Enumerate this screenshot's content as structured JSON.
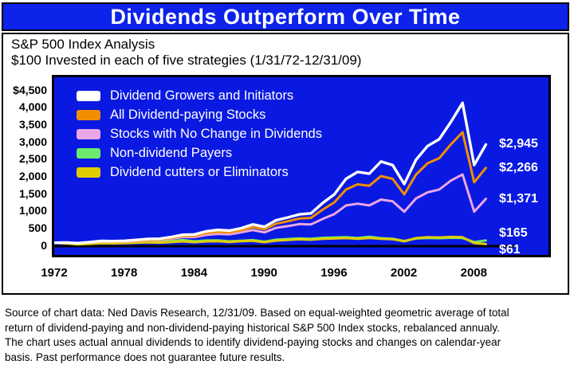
{
  "header": {
    "title": "Dividends Outperform Over Time"
  },
  "subtitle": {
    "line1": "S&P 500 Index Analysis",
    "line2": "$100 Invested in each of five strategies (1/31/72-12/31/09)"
  },
  "chart_data": {
    "type": "line",
    "title": "Dividends Outperform Over Time",
    "subtitle": "$100 Invested in each of five strategies (1/31/72-12/31/09)",
    "xlabel": "",
    "ylabel": "",
    "ylim": [
      0,
      4500
    ],
    "grid": false,
    "legend_position": "top-left",
    "plot_background": "#0a19e1",
    "x": [
      1972,
      1973,
      1974,
      1975,
      1976,
      1977,
      1978,
      1979,
      1980,
      1981,
      1982,
      1983,
      1984,
      1985,
      1986,
      1987,
      1988,
      1989,
      1990,
      1991,
      1992,
      1993,
      1994,
      1995,
      1996,
      1997,
      1998,
      1999,
      2000,
      2001,
      2002,
      2003,
      2004,
      2005,
      2006,
      2007,
      2008,
      2009
    ],
    "x_tick_labels": [
      "1972",
      "1978",
      "1984",
      "1990",
      "1996",
      "2002",
      "2008"
    ],
    "y_tick_labels": [
      "$4,500",
      "4,000",
      "3,500",
      "3,000",
      "2,500",
      "2,000",
      "1,500",
      "1,000",
      "500",
      "0"
    ],
    "series": [
      {
        "name": "Dividend Growers and Initiators",
        "color": "#ffffff",
        "end_label": "$2,945",
        "end_value": 2945,
        "values": [
          100,
          105,
          88,
          115,
          150,
          145,
          155,
          180,
          210,
          215,
          265,
          330,
          340,
          430,
          470,
          450,
          520,
          630,
          560,
          750,
          830,
          920,
          950,
          1250,
          1500,
          1950,
          2150,
          2100,
          2450,
          2350,
          1800,
          2500,
          2900,
          3100,
          3600,
          4150,
          2350,
          2945
        ]
      },
      {
        "name": "All Dividend-paying Stocks",
        "color": "#f28e00",
        "end_label": "$2,266",
        "end_value": 2266,
        "values": [
          100,
          102,
          84,
          110,
          140,
          135,
          143,
          165,
          190,
          195,
          240,
          295,
          300,
          380,
          415,
          400,
          460,
          550,
          490,
          650,
          720,
          800,
          820,
          1060,
          1270,
          1640,
          1790,
          1750,
          2030,
          1950,
          1500,
          2070,
          2400,
          2550,
          2950,
          3300,
          1850,
          2266
        ]
      },
      {
        "name": "Stocks with No Change in Dividends",
        "color": "#eba6e6",
        "end_label": "$1,371",
        "end_value": 1371,
        "values": [
          100,
          100,
          80,
          105,
          132,
          126,
          133,
          152,
          175,
          176,
          215,
          262,
          262,
          325,
          355,
          345,
          400,
          465,
          400,
          530,
          580,
          640,
          630,
          790,
          930,
          1180,
          1230,
          1180,
          1350,
          1300,
          1000,
          1380,
          1560,
          1640,
          1900,
          2080,
          1000,
          1371
        ]
      },
      {
        "name": "Non-dividend Payers",
        "color": "#6dea6d",
        "end_label": "$165",
        "end_value": 165,
        "values": [
          100,
          82,
          55,
          72,
          90,
          88,
          98,
          118,
          145,
          128,
          145,
          175,
          140,
          163,
          168,
          140,
          158,
          175,
          130,
          188,
          205,
          225,
          212,
          242,
          252,
          258,
          238,
          272,
          230,
          215,
          150,
          222,
          238,
          230,
          242,
          235,
          120,
          165
        ]
      },
      {
        "name": "Dividend cutters or Eliminators",
        "color": "#e0cd00",
        "end_label": "$61",
        "end_value": 61,
        "values": [
          100,
          78,
          50,
          66,
          82,
          80,
          88,
          98,
          108,
          102,
          118,
          138,
          115,
          138,
          142,
          120,
          142,
          158,
          115,
          162,
          178,
          198,
          188,
          212,
          222,
          232,
          215,
          238,
          212,
          200,
          140,
          232,
          258,
          252,
          268,
          258,
          90,
          61
        ]
      }
    ]
  },
  "source_note": {
    "lines": [
      "Source of chart data: Ned Davis Research, 12/31/09. Based on equal-weighted geometric average of total",
      "return of dividend-paying and non-dividend-paying historical S&P 500 Index stocks, rebalanced annualy.",
      "The chart uses actual annual dividends to identify dividend-paying stocks and changes on calendar-year",
      "basis. Past performance does not guarantee future results."
    ]
  }
}
